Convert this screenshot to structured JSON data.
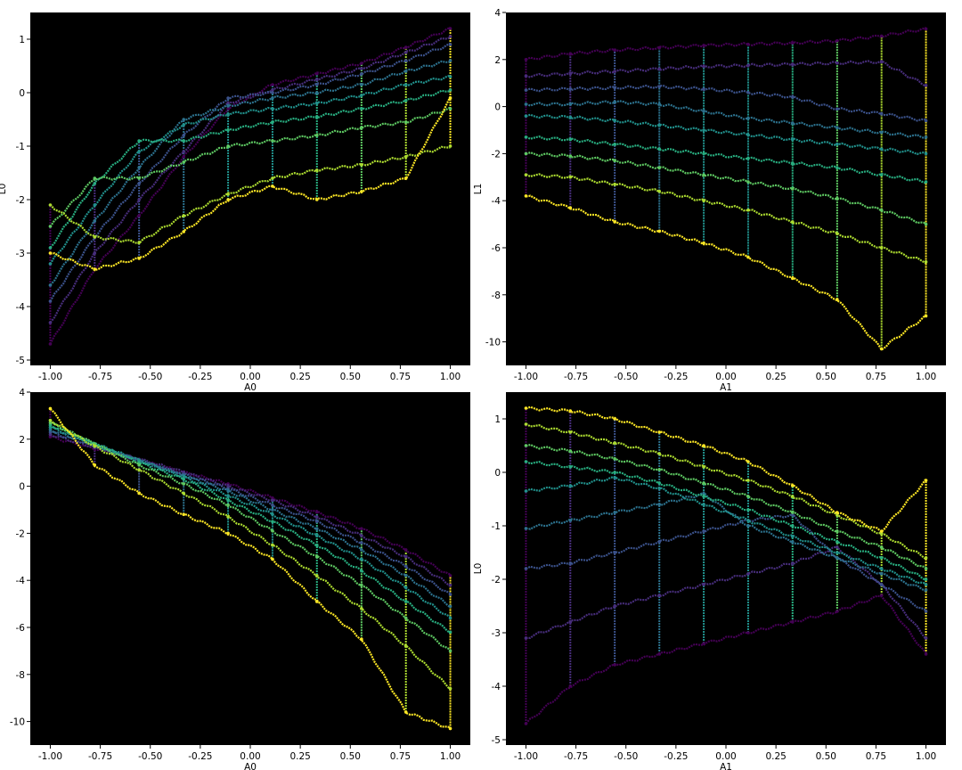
{
  "figure": {
    "colormap": [
      "#440154",
      "#472d7b",
      "#3b528b",
      "#2c728e",
      "#21918c",
      "#28ae80",
      "#5ec962",
      "#addc30",
      "#fde725"
    ],
    "plot_background": "#000000",
    "figure_background": "#ffffff"
  },
  "chart_data": [
    {
      "type": "scatter",
      "title": "",
      "xlabel": "A0",
      "ylabel": "L0",
      "xlim": [
        -1.1,
        1.1
      ],
      "ylim": [
        -5.1,
        1.5
      ],
      "xticks": [
        "-1.00",
        "-0.75",
        "-0.50",
        "-0.25",
        "0.00",
        "0.25",
        "0.50",
        "0.75",
        "1.00"
      ],
      "yticks": [
        "1",
        "0",
        "-1",
        "-2",
        "-3",
        "-4",
        "-5"
      ],
      "x": [
        -1.0,
        -0.778,
        -0.556,
        -0.333,
        -0.111,
        0.111,
        0.333,
        0.556,
        0.778,
        1.0
      ],
      "series": [
        {
          "values": [
            -4.7,
            -3.3,
            -2.3,
            -1.2,
            -0.3,
            0.15,
            0.35,
            0.55,
            0.85,
            1.2
          ]
        },
        {
          "values": [
            -4.3,
            -3.0,
            -2.0,
            -1.1,
            -0.2,
            0.05,
            0.25,
            0.45,
            0.75,
            1.05
          ]
        },
        {
          "values": [
            -3.9,
            -2.7,
            -1.7,
            -0.8,
            -0.1,
            0.0,
            0.15,
            0.35,
            0.6,
            0.9
          ]
        },
        {
          "values": [
            -3.6,
            -2.4,
            -1.4,
            -0.5,
            -0.25,
            -0.1,
            0.0,
            0.15,
            0.4,
            0.6
          ]
        },
        {
          "values": [
            -3.2,
            -2.1,
            -1.1,
            -0.6,
            -0.4,
            -0.3,
            -0.2,
            -0.05,
            0.15,
            0.3
          ]
        },
        {
          "values": [
            -2.9,
            -1.7,
            -0.9,
            -0.9,
            -0.7,
            -0.55,
            -0.45,
            -0.3,
            -0.15,
            0.05
          ]
        },
        {
          "values": [
            -2.5,
            -1.6,
            -1.6,
            -1.3,
            -1.0,
            -0.9,
            -0.8,
            -0.65,
            -0.55,
            -0.3
          ]
        },
        {
          "values": [
            -2.1,
            -2.7,
            -2.8,
            -2.3,
            -1.9,
            -1.6,
            -1.45,
            -1.35,
            -1.2,
            -1.0
          ]
        },
        {
          "values": [
            -3.0,
            -3.3,
            -3.1,
            -2.6,
            -2.0,
            -1.75,
            -2.0,
            -1.85,
            -1.6,
            -0.1
          ]
        }
      ]
    },
    {
      "type": "scatter",
      "title": "",
      "xlabel": "A1",
      "ylabel": "L1",
      "xlim": [
        -1.1,
        1.1
      ],
      "ylim": [
        -11.0,
        4.0
      ],
      "xticks": [
        "-1.00",
        "-0.75",
        "-0.50",
        "-0.25",
        "0.00",
        "0.25",
        "0.50",
        "0.75",
        "1.00"
      ],
      "yticks": [
        "4",
        "2",
        "0",
        "-2",
        "-4",
        "-6",
        "-8",
        "-10"
      ],
      "x": [
        -1.0,
        -0.778,
        -0.556,
        -0.333,
        -0.111,
        0.111,
        0.333,
        0.556,
        0.778,
        1.0
      ],
      "series": [
        {
          "values": [
            2.0,
            2.25,
            2.4,
            2.5,
            2.6,
            2.65,
            2.7,
            2.8,
            3.0,
            3.3
          ]
        },
        {
          "values": [
            1.3,
            1.4,
            1.5,
            1.6,
            1.7,
            1.75,
            1.8,
            1.85,
            1.9,
            0.9
          ]
        },
        {
          "values": [
            0.7,
            0.75,
            0.8,
            0.85,
            0.75,
            0.6,
            0.4,
            -0.1,
            -0.3,
            -0.6
          ]
        },
        {
          "values": [
            0.1,
            0.1,
            0.2,
            0.1,
            -0.2,
            -0.5,
            -0.7,
            -0.9,
            -1.1,
            -1.3
          ]
        },
        {
          "values": [
            -0.4,
            -0.45,
            -0.6,
            -0.8,
            -1.0,
            -1.2,
            -1.4,
            -1.6,
            -1.8,
            -2.0
          ]
        },
        {
          "values": [
            -1.3,
            -1.4,
            -1.6,
            -1.8,
            -2.0,
            -2.2,
            -2.4,
            -2.6,
            -2.9,
            -3.2
          ]
        },
        {
          "values": [
            -2.0,
            -2.1,
            -2.3,
            -2.6,
            -2.9,
            -3.2,
            -3.5,
            -3.9,
            -4.4,
            -5.0
          ]
        },
        {
          "values": [
            -2.9,
            -3.0,
            -3.3,
            -3.6,
            -4.0,
            -4.4,
            -4.9,
            -5.4,
            -6.0,
            -6.6
          ]
        },
        {
          "values": [
            -3.8,
            -4.3,
            -4.9,
            -5.3,
            -5.8,
            -6.4,
            -7.3,
            -8.2,
            -10.3,
            -8.9
          ]
        }
      ]
    },
    {
      "type": "scatter",
      "title": "",
      "xlabel": "A0",
      "ylabel": "",
      "xlim": [
        -1.1,
        1.1
      ],
      "ylim": [
        -11.0,
        4.0
      ],
      "xticks": [
        "-1.00",
        "-0.75",
        "-0.50",
        "-0.25",
        "0.00",
        "0.25",
        "0.50",
        "0.75",
        "1.00"
      ],
      "yticks": [
        "4",
        "2",
        "0",
        "-2",
        "-4",
        "-6",
        "-8",
        "-10"
      ],
      "x": [
        -1.0,
        -0.778,
        -0.556,
        -0.333,
        -0.111,
        0.111,
        0.333,
        0.556,
        0.778,
        1.0
      ],
      "series": [
        {
          "values": [
            2.1,
            1.6,
            1.1,
            0.6,
            0.1,
            -0.5,
            -1.1,
            -1.8,
            -2.7,
            -3.8
          ]
        },
        {
          "values": [
            2.2,
            1.65,
            1.15,
            0.6,
            0.0,
            -0.6,
            -1.3,
            -2.1,
            -3.0,
            -4.2
          ]
        },
        {
          "values": [
            2.3,
            1.7,
            1.1,
            0.5,
            -0.1,
            -0.8,
            -1.5,
            -2.4,
            -3.4,
            -4.6
          ]
        },
        {
          "values": [
            2.4,
            1.75,
            1.1,
            0.45,
            -0.2,
            -1.0,
            -1.8,
            -2.7,
            -3.8,
            -5.1
          ]
        },
        {
          "values": [
            2.5,
            1.8,
            1.1,
            0.4,
            -0.4,
            -1.2,
            -2.1,
            -3.1,
            -4.3,
            -5.6
          ]
        },
        {
          "values": [
            2.6,
            1.8,
            1.0,
            0.3,
            -0.6,
            -1.5,
            -2.5,
            -3.6,
            -4.9,
            -6.2
          ]
        },
        {
          "values": [
            2.7,
            1.8,
            0.9,
            0.1,
            -0.8,
            -1.9,
            -3.0,
            -4.2,
            -5.6,
            -7.0
          ]
        },
        {
          "values": [
            2.8,
            1.7,
            0.7,
            -0.3,
            -1.3,
            -2.5,
            -3.8,
            -5.2,
            -6.8,
            -8.6
          ]
        },
        {
          "values": [
            3.3,
            0.9,
            -0.3,
            -1.2,
            -2.0,
            -3.1,
            -4.9,
            -6.5,
            -9.6,
            -10.3
          ]
        }
      ]
    },
    {
      "type": "scatter",
      "title": "",
      "xlabel": "A1",
      "ylabel": "L0",
      "xlim": [
        -1.1,
        1.1
      ],
      "ylim": [
        -5.1,
        1.5
      ],
      "xticks": [
        "-1.00",
        "-0.75",
        "-0.50",
        "-0.25",
        "0.00",
        "0.25",
        "0.50",
        "0.75",
        "1.00"
      ],
      "yticks": [
        "1",
        "0",
        "-1",
        "-2",
        "-3",
        "-4",
        "-5"
      ],
      "x": [
        -1.0,
        -0.778,
        -0.556,
        -0.333,
        -0.111,
        0.111,
        0.333,
        0.556,
        0.778,
        1.0
      ],
      "series": [
        {
          "values": [
            -4.7,
            -4.0,
            -3.6,
            -3.4,
            -3.2,
            -3.0,
            -2.8,
            -2.6,
            -2.3,
            -3.4
          ]
        },
        {
          "values": [
            -3.1,
            -2.8,
            -2.5,
            -2.3,
            -2.1,
            -1.9,
            -1.7,
            -1.4,
            -2.1,
            -3.1
          ]
        },
        {
          "values": [
            -1.8,
            -1.7,
            -1.5,
            -1.3,
            -1.1,
            -0.9,
            -0.8,
            -1.6,
            -2.1,
            -2.6
          ]
        },
        {
          "values": [
            -1.05,
            -0.9,
            -0.75,
            -0.6,
            -0.4,
            -1.0,
            -1.3,
            -1.6,
            -1.9,
            -2.2
          ]
        },
        {
          "values": [
            -0.35,
            -0.25,
            -0.1,
            -0.3,
            -0.6,
            -0.9,
            -1.2,
            -1.5,
            -1.8,
            -2.1
          ]
        },
        {
          "values": [
            0.2,
            0.1,
            0.0,
            -0.2,
            -0.45,
            -0.7,
            -1.0,
            -1.3,
            -1.6,
            -2.0
          ]
        },
        {
          "values": [
            0.5,
            0.4,
            0.25,
            0.05,
            -0.2,
            -0.45,
            -0.75,
            -1.1,
            -1.4,
            -1.8
          ]
        },
        {
          "values": [
            0.9,
            0.75,
            0.55,
            0.35,
            0.1,
            -0.15,
            -0.45,
            -0.8,
            -1.15,
            -1.6
          ]
        },
        {
          "values": [
            1.2,
            1.15,
            1.0,
            0.75,
            0.5,
            0.2,
            -0.25,
            -0.75,
            -1.1,
            -0.15
          ]
        }
      ]
    }
  ]
}
